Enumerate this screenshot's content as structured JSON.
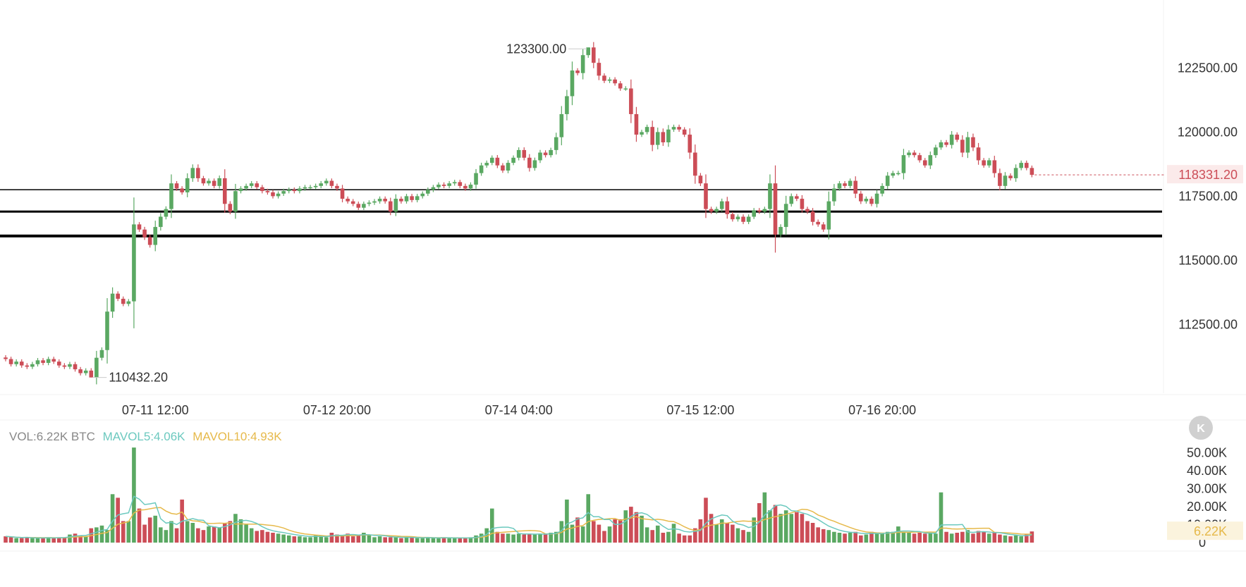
{
  "chart_data": [
    {
      "type": "candlestick",
      "symbol_unit": "BTC",
      "y_ticks": [
        "122500.00",
        "120000.00",
        "117500.00",
        "115000.00",
        "112500.00"
      ],
      "y_tick_values": [
        122500,
        120000,
        117500,
        115000,
        112500
      ],
      "ylim": [
        109900,
        124600
      ],
      "x_ticks": [
        "07-11 12:00",
        "07-12 20:00",
        "07-14 04:00",
        "07-15 12:00",
        "07-16 20:00"
      ],
      "x_tick_candle_index": [
        28,
        62,
        96,
        130,
        164
      ],
      "high_label": "123300.00",
      "high_value": 123300.0,
      "high_candle_index": 109,
      "low_label": "110432.20",
      "low_value": 110432.2,
      "low_candle_index": 16,
      "last_price_label": "118331.20",
      "last_price": 118331.2,
      "horizontal_lines": [
        117750,
        116900,
        115950
      ],
      "grid": false,
      "colors": {
        "up": "#5aa862",
        "down": "#cc4d57",
        "last_price": "#cc4d57",
        "line": "#000000"
      },
      "candles_close": [
        111150,
        110950,
        111050,
        110900,
        110850,
        110950,
        111100,
        111000,
        111150,
        111050,
        110900,
        110850,
        110950,
        110750,
        110600,
        110700,
        110432,
        111200,
        111500,
        113000,
        113700,
        113500,
        113300,
        113400,
        116400,
        116200,
        115900,
        115600,
        116300,
        116700,
        117000,
        118000,
        117800,
        117650,
        118200,
        118600,
        118200,
        118000,
        118100,
        117900,
        118200,
        117200,
        116900,
        117700,
        117800,
        117900,
        118000,
        117850,
        117700,
        117650,
        117500,
        117600,
        117700,
        117750,
        117700,
        117800,
        117850,
        117850,
        117900,
        118000,
        118100,
        117900,
        117800,
        117400,
        117300,
        117200,
        117050,
        117200,
        117250,
        117300,
        117400,
        117300,
        116900,
        117400,
        117300,
        117500,
        117350,
        117500,
        117600,
        117750,
        117850,
        117950,
        117900,
        118000,
        118050,
        117900,
        117800,
        117950,
        118400,
        118700,
        118800,
        119000,
        118700,
        118500,
        118800,
        119000,
        119300,
        119000,
        118600,
        118900,
        119200,
        119100,
        119300,
        119800,
        120700,
        121400,
        122400,
        122300,
        123000,
        123300,
        122700,
        122200,
        122000,
        122050,
        121900,
        121700,
        121700,
        120700,
        119900,
        120000,
        120200,
        119500,
        120000,
        119600,
        120100,
        120200,
        120100,
        119900,
        119200,
        118300,
        118000,
        117000,
        116900,
        117000,
        117300,
        116800,
        116600,
        116700,
        116500,
        116700,
        116950,
        116900,
        117000,
        118000,
        116000,
        116300,
        117200,
        117500,
        117400,
        117000,
        116900,
        116500,
        116400,
        116200,
        117300,
        117800,
        118000,
        117900,
        118100,
        117600,
        117300,
        117400,
        117200,
        117600,
        117900,
        118300,
        118400,
        118400,
        119100,
        119200,
        119100,
        118900,
        118700,
        119100,
        119400,
        119600,
        119500,
        119900,
        119700,
        119200,
        119800,
        119400,
        118900,
        118700,
        118900,
        118400,
        117900,
        118300,
        118200,
        118600,
        118800,
        118600,
        118331
      ],
      "volume": {
        "label": "VOL:6.22K BTC",
        "mavol5_label": "MAVOL5:4.06K",
        "mavol10_label": "MAVOL10:4.93K",
        "current_label": "6.22K",
        "y_ticks": [
          "50.00K",
          "40.00K",
          "30.00K",
          "20.00K",
          "10.00K",
          "0"
        ],
        "y_tick_values": [
          50000,
          40000,
          30000,
          20000,
          10000,
          0
        ],
        "ylim": [
          0,
          55000
        ],
        "colors": {
          "mavol5": "#6cc9bf",
          "mavol10": "#e6b94a",
          "label": "#888888"
        },
        "values_k": [
          3.5,
          3.0,
          2.5,
          2.5,
          3.0,
          2.5,
          2.5,
          2.5,
          3.0,
          2.5,
          3.0,
          3.0,
          4.5,
          5.0,
          4.0,
          3.5,
          8.0,
          8.5,
          9.5,
          7.0,
          27.0,
          25.0,
          12.0,
          12.0,
          53.0,
          19.0,
          10.0,
          14.0,
          15.0,
          8.5,
          7.0,
          12.0,
          8.0,
          24.0,
          12.0,
          11.0,
          8.0,
          7.0,
          9.0,
          9.0,
          8.5,
          11.0,
          12.0,
          16.0,
          13.0,
          10.0,
          8.0,
          6.5,
          7.0,
          6.0,
          5.5,
          5.0,
          4.5,
          4.0,
          3.5,
          3.5,
          3.0,
          3.0,
          4.0,
          3.5,
          3.0,
          5.5,
          4.5,
          4.0,
          5.0,
          3.5,
          4.0,
          5.5,
          4.0,
          3.0,
          3.5,
          3.0,
          3.0,
          3.0,
          2.5,
          3.0,
          3.0,
          2.5,
          2.5,
          3.0,
          2.5,
          2.5,
          3.0,
          2.5,
          2.5,
          2.5,
          2.5,
          3.0,
          4.0,
          5.0,
          8.0,
          19.0,
          6.0,
          5.0,
          5.0,
          4.5,
          5.0,
          4.5,
          5.0,
          4.5,
          5.0,
          4.5,
          5.5,
          6.0,
          12.0,
          24.0,
          10.0,
          14.0,
          9.0,
          27.0,
          12.0,
          10.0,
          6.5,
          9.0,
          13.0,
          13.0,
          18.0,
          20.0,
          17.0,
          15.0,
          8.5,
          7.0,
          9.5,
          5.5,
          6.0,
          10.5,
          5.0,
          4.0,
          4.0,
          8.0,
          13.0,
          25.0,
          16.0,
          10.0,
          13.0,
          11.0,
          10.0,
          8.0,
          7.0,
          6.0,
          14.0,
          22.0,
          28.0,
          18.0,
          21.0,
          16.0,
          18.0,
          16.0,
          17.0,
          16.0,
          12.0,
          11.0,
          8.5,
          7.5,
          7.0,
          6.0,
          5.5,
          5.0,
          5.5,
          6.0,
          4.0,
          4.5,
          6.0,
          5.0,
          5.5,
          6.0,
          6.0,
          9.0,
          6.0,
          5.5,
          5.0,
          5.5,
          5.0,
          5.5,
          5.0,
          28.0,
          6.0,
          5.0,
          5.5,
          6.0,
          7.0,
          5.0,
          6.5,
          6.0,
          5.0,
          5.5,
          4.5,
          4.0,
          3.5,
          4.0,
          3.5,
          4.5,
          6.22
        ]
      }
    }
  ]
}
